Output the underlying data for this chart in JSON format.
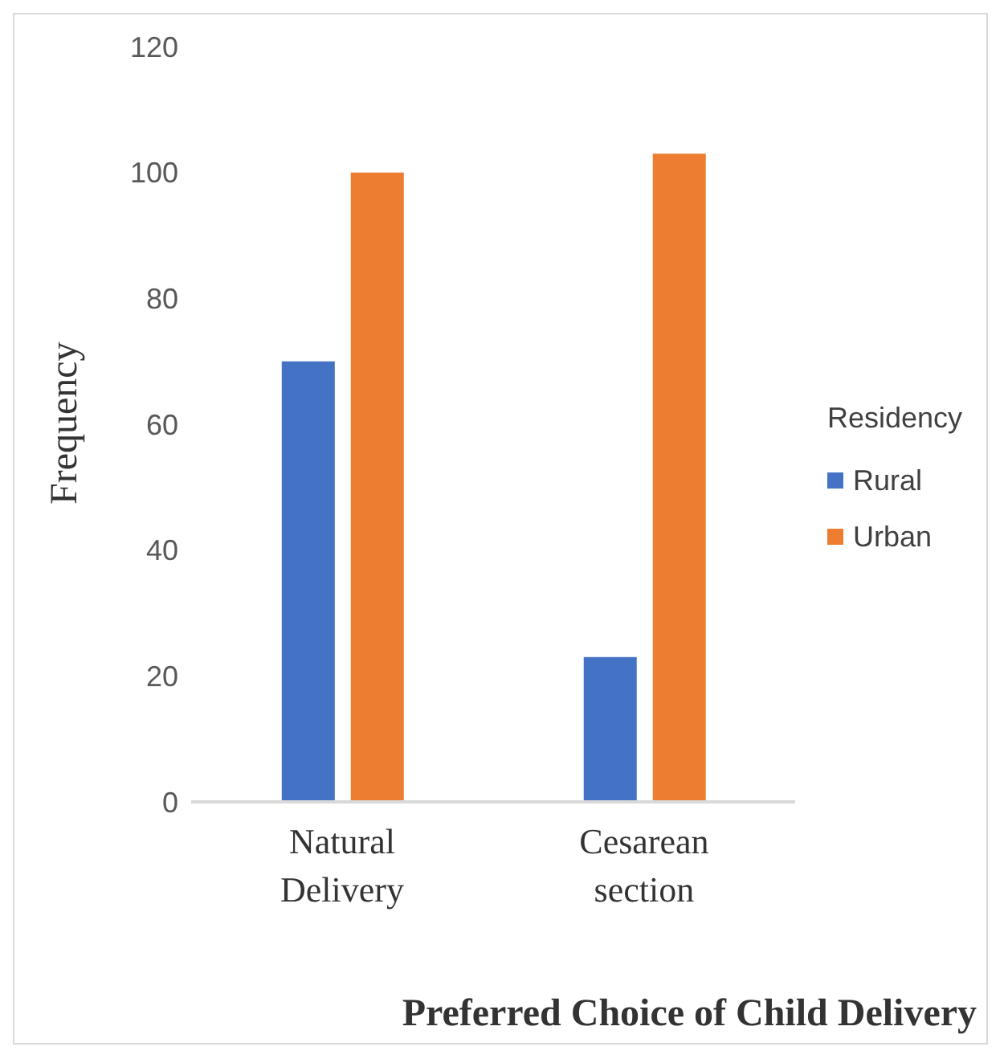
{
  "chart_data": {
    "type": "bar",
    "xlabel": "Preferred Choice of Child Delivery",
    "ylabel": "Frequency",
    "legend_title": "Residency",
    "categories": [
      "Natural Delivery",
      "Cesarean section"
    ],
    "series": [
      {
        "name": "Rural",
        "color": "#4472c4",
        "values": [
          70,
          23
        ]
      },
      {
        "name": "Urban",
        "color": "#ed7d31",
        "values": [
          100,
          103
        ]
      }
    ],
    "ylim": [
      0,
      120
    ],
    "yticks": [
      0,
      20,
      40,
      60,
      80,
      100,
      120
    ],
    "grid": false,
    "legend": "right"
  }
}
